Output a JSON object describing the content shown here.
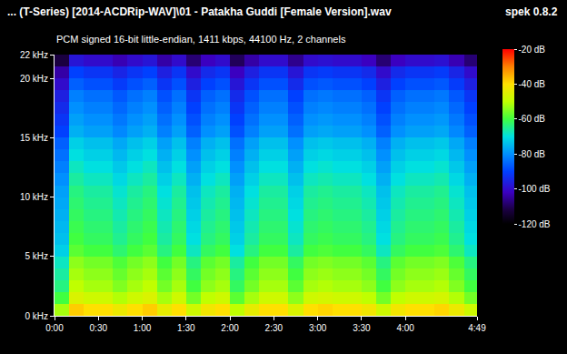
{
  "chart_data": {
    "type": "heatmap",
    "title": "... (T-Series) [2014-ACDRip-WAV]\\01 - Patakha Guddi [Female Version].wav",
    "subtitle": "PCM signed 16-bit little-endian, 1411 kbps, 44100 Hz, 2 channels",
    "annotations": [
      {
        "text": "spek 0.8.2"
      }
    ],
    "x": [
      0,
      10,
      20,
      30,
      40,
      50,
      60,
      70,
      80,
      90,
      100,
      110,
      120,
      130,
      140,
      150,
      160,
      170,
      180,
      190,
      200,
      210,
      220,
      230,
      240,
      250,
      260,
      270,
      280,
      289
    ],
    "y": [
      0,
      1,
      2,
      3,
      4,
      5,
      6,
      7,
      8,
      9,
      10,
      11,
      12,
      13,
      14,
      15,
      16,
      17,
      18,
      19,
      20,
      21,
      22
    ],
    "xlim": [
      0,
      289
    ],
    "xticks": [
      {
        "value": 0,
        "label": "0:00"
      },
      {
        "value": 30,
        "label": "0:30"
      },
      {
        "value": 60,
        "label": "1:00"
      },
      {
        "value": 90,
        "label": "1:30"
      },
      {
        "value": 120,
        "label": "2:00"
      },
      {
        "value": 150,
        "label": "2:30"
      },
      {
        "value": 180,
        "label": "3:00"
      },
      {
        "value": 210,
        "label": "3:30"
      },
      {
        "value": 240,
        "label": "4:00"
      },
      {
        "value": 289,
        "label": "4:49"
      }
    ],
    "ylim": [
      0,
      22
    ],
    "yticks": [
      {
        "value": 0,
        "label": "0 kHz"
      },
      {
        "value": 5,
        "label": "5 kHz"
      },
      {
        "value": 10,
        "label": "10 kHz"
      },
      {
        "value": 15,
        "label": "15 kHz"
      },
      {
        "value": 20,
        "label": "20 kHz"
      },
      {
        "value": 22,
        "label": "22 kHz"
      }
    ],
    "colorbar_range": [
      -120,
      -20
    ],
    "colorbar_ticks": [
      {
        "value": -20,
        "label": "-20 dB"
      },
      {
        "value": -40,
        "label": "-40 dB"
      },
      {
        "value": -60,
        "label": "-60 dB"
      },
      {
        "value": -80,
        "label": "-80 dB"
      },
      {
        "value": -100,
        "label": "-100 dB"
      },
      {
        "value": -120,
        "label": "-120 dB"
      }
    ],
    "z": [
      [
        -52,
        -38,
        -40,
        -40,
        -43,
        -40,
        -38,
        -44,
        -40,
        -48,
        -42,
        -40,
        -50,
        -44,
        -40,
        -40,
        -46,
        -40,
        -39,
        -40,
        -40,
        -42,
        -48,
        -42,
        -40,
        -40,
        -39,
        -43,
        -48
      ],
      [
        -60,
        -46,
        -48,
        -48,
        -51,
        -48,
        -46,
        -52,
        -48,
        -56,
        -50,
        -48,
        -58,
        -52,
        -48,
        -48,
        -54,
        -48,
        -47,
        -48,
        -48,
        -50,
        -56,
        -50,
        -48,
        -48,
        -47,
        -51,
        -56
      ],
      [
        -64,
        -50,
        -52,
        -52,
        -55,
        -52,
        -50,
        -56,
        -52,
        -60,
        -54,
        -52,
        -62,
        -56,
        -52,
        -52,
        -58,
        -52,
        -51,
        -52,
        -52,
        -54,
        -60,
        -54,
        -52,
        -52,
        -51,
        -55,
        -60
      ],
      [
        -66,
        -52,
        -54,
        -54,
        -57,
        -54,
        -52,
        -58,
        -54,
        -62,
        -56,
        -54,
        -64,
        -58,
        -54,
        -54,
        -60,
        -54,
        -53,
        -54,
        -54,
        -56,
        -62,
        -56,
        -54,
        -54,
        -53,
        -57,
        -62
      ],
      [
        -68,
        -54,
        -56,
        -56,
        -59,
        -56,
        -54,
        -60,
        -56,
        -64,
        -58,
        -56,
        -66,
        -60,
        -56,
        -56,
        -62,
        -56,
        -55,
        -56,
        -56,
        -58,
        -64,
        -58,
        -56,
        -56,
        -55,
        -59,
        -64
      ],
      [
        -72,
        -58,
        -60,
        -60,
        -63,
        -60,
        -58,
        -64,
        -60,
        -68,
        -62,
        -60,
        -70,
        -64,
        -60,
        -60,
        -66,
        -60,
        -59,
        -60,
        -60,
        -62,
        -68,
        -62,
        -60,
        -60,
        -59,
        -63,
        -68
      ],
      [
        -74,
        -60,
        -62,
        -62,
        -65,
        -62,
        -60,
        -66,
        -62,
        -70,
        -64,
        -62,
        -72,
        -66,
        -62,
        -62,
        -68,
        -62,
        -61,
        -62,
        -62,
        -64,
        -70,
        -64,
        -62,
        -62,
        -61,
        -65,
        -70
      ],
      [
        -75,
        -61,
        -63,
        -63,
        -66,
        -63,
        -61,
        -67,
        -63,
        -71,
        -65,
        -63,
        -73,
        -67,
        -63,
        -63,
        -69,
        -63,
        -62,
        -63,
        -63,
        -65,
        -71,
        -65,
        -63,
        -63,
        -62,
        -66,
        -71
      ],
      [
        -76,
        -62,
        -64,
        -64,
        -67,
        -64,
        -62,
        -68,
        -64,
        -72,
        -66,
        -64,
        -74,
        -68,
        -64,
        -64,
        -70,
        -64,
        -63,
        -64,
        -64,
        -66,
        -72,
        -66,
        -64,
        -64,
        -63,
        -67,
        -72
      ],
      [
        -77,
        -63,
        -65,
        -65,
        -68,
        -65,
        -63,
        -69,
        -65,
        -73,
        -67,
        -65,
        -75,
        -69,
        -65,
        -65,
        -71,
        -65,
        -64,
        -65,
        -65,
        -67,
        -73,
        -67,
        -65,
        -65,
        -64,
        -68,
        -73
      ],
      [
        -78,
        -64,
        -66,
        -66,
        -69,
        -66,
        -64,
        -70,
        -66,
        -74,
        -68,
        -66,
        -76,
        -70,
        -66,
        -66,
        -72,
        -66,
        -65,
        -66,
        -66,
        -68,
        -74,
        -68,
        -66,
        -66,
        -65,
        -69,
        -74
      ],
      [
        -80,
        -66,
        -68,
        -68,
        -71,
        -68,
        -66,
        -72,
        -68,
        -76,
        -70,
        -68,
        -78,
        -72,
        -68,
        -68,
        -74,
        -68,
        -67,
        -68,
        -68,
        -70,
        -76,
        -70,
        -68,
        -68,
        -67,
        -71,
        -76
      ],
      [
        -82,
        -68,
        -70,
        -70,
        -73,
        -70,
        -68,
        -74,
        -70,
        -78,
        -72,
        -70,
        -80,
        -74,
        -70,
        -70,
        -76,
        -70,
        -69,
        -70,
        -70,
        -72,
        -78,
        -72,
        -70,
        -70,
        -69,
        -73,
        -78
      ],
      [
        -84,
        -70,
        -72,
        -72,
        -75,
        -72,
        -70,
        -76,
        -72,
        -80,
        -74,
        -72,
        -82,
        -76,
        -72,
        -72,
        -78,
        -72,
        -71,
        -72,
        -72,
        -74,
        -80,
        -74,
        -72,
        -72,
        -71,
        -75,
        -80
      ],
      [
        -86,
        -72,
        -74,
        -74,
        -77,
        -74,
        -72,
        -78,
        -74,
        -82,
        -76,
        -74,
        -84,
        -78,
        -74,
        -74,
        -80,
        -74,
        -73,
        -74,
        -74,
        -76,
        -82,
        -76,
        -74,
        -74,
        -73,
        -77,
        -82
      ],
      [
        -90,
        -76,
        -78,
        -78,
        -81,
        -78,
        -76,
        -82,
        -78,
        -86,
        -80,
        -78,
        -88,
        -82,
        -78,
        -78,
        -84,
        -78,
        -77,
        -78,
        -78,
        -80,
        -86,
        -80,
        -78,
        -78,
        -77,
        -81,
        -86
      ],
      [
        -92,
        -78,
        -80,
        -80,
        -83,
        -80,
        -78,
        -84,
        -80,
        -88,
        -82,
        -80,
        -90,
        -84,
        -80,
        -80,
        -86,
        -80,
        -79,
        -80,
        -80,
        -82,
        -88,
        -82,
        -80,
        -80,
        -79,
        -83,
        -88
      ],
      [
        -94,
        -80,
        -82,
        -82,
        -85,
        -82,
        -80,
        -86,
        -82,
        -90,
        -84,
        -82,
        -92,
        -86,
        -82,
        -82,
        -88,
        -82,
        -81,
        -82,
        -82,
        -84,
        -90,
        -84,
        -82,
        -82,
        -81,
        -85,
        -90
      ],
      [
        -96,
        -82,
        -84,
        -84,
        -87,
        -84,
        -82,
        -88,
        -84,
        -92,
        -86,
        -84,
        -94,
        -88,
        -84,
        -84,
        -90,
        -84,
        -83,
        -84,
        -84,
        -86,
        -92,
        -86,
        -84,
        -84,
        -83,
        -87,
        -92
      ],
      [
        -100,
        -86,
        -88,
        -88,
        -91,
        -88,
        -86,
        -92,
        -88,
        -96,
        -90,
        -88,
        -98,
        -92,
        -88,
        -88,
        -94,
        -88,
        -87,
        -88,
        -88,
        -90,
        -96,
        -90,
        -88,
        -88,
        -87,
        -91,
        -96
      ],
      [
        -104,
        -90,
        -92,
        -92,
        -95,
        -92,
        -90,
        -96,
        -92,
        -100,
        -94,
        -92,
        -102,
        -96,
        -92,
        -92,
        -98,
        -92,
        -91,
        -92,
        -92,
        -94,
        -100,
        -94,
        -92,
        -92,
        -91,
        -95,
        -100
      ],
      [
        -112,
        -98,
        -100,
        -100,
        -103,
        -100,
        -98,
        -104,
        -100,
        -108,
        -102,
        -100,
        -110,
        -104,
        -100,
        -100,
        -106,
        -100,
        -99,
        -100,
        -100,
        -102,
        -108,
        -102,
        -100,
        -100,
        -99,
        -103,
        -108
      ]
    ]
  }
}
